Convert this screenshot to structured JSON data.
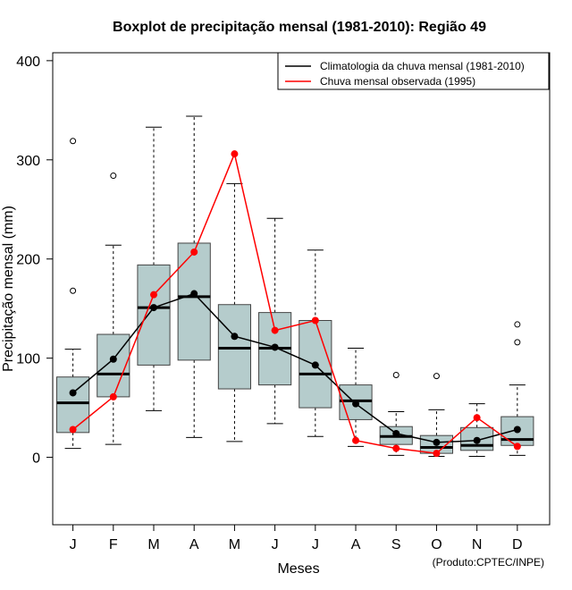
{
  "chart_data": {
    "type": "boxplot",
    "title": "Boxplot de precipitação mensal (1981-2010): Região 49",
    "xlabel": "Meses",
    "ylabel": "Precipitação mensal (mm)",
    "ylim": [
      -68,
      408
    ],
    "yticks": [
      0,
      100,
      200,
      300,
      400
    ],
    "grid": false,
    "legend_position": "top-right",
    "credit": "(Produto:CPTEC/INPE)",
    "categories": [
      "J",
      "F",
      "M",
      "A",
      "M",
      "J",
      "J",
      "A",
      "S",
      "O",
      "N",
      "D"
    ],
    "boxes": [
      {
        "month": "J",
        "whisker_low": 9,
        "q1": 25,
        "median": 55,
        "q3": 81,
        "whisker_high": 109,
        "outliers": [
          168,
          319
        ]
      },
      {
        "month": "F",
        "whisker_low": 13,
        "q1": 61,
        "median": 84,
        "q3": 124,
        "whisker_high": 214,
        "outliers": [
          284
        ]
      },
      {
        "month": "M",
        "whisker_low": 47,
        "q1": 93,
        "median": 151,
        "q3": 194,
        "whisker_high": 333,
        "outliers": []
      },
      {
        "month": "A",
        "whisker_low": 20,
        "q1": 98,
        "median": 162,
        "q3": 216,
        "whisker_high": 344,
        "outliers": []
      },
      {
        "month": "M",
        "whisker_low": 16,
        "q1": 69,
        "median": 110,
        "q3": 154,
        "whisker_high": 276,
        "outliers": []
      },
      {
        "month": "J",
        "whisker_low": 34,
        "q1": 73,
        "median": 110,
        "q3": 146,
        "whisker_high": 241,
        "outliers": []
      },
      {
        "month": "J",
        "whisker_low": 21,
        "q1": 50,
        "median": 84,
        "q3": 138,
        "whisker_high": 209,
        "outliers": []
      },
      {
        "month": "A",
        "whisker_low": 11,
        "q1": 38,
        "median": 57,
        "q3": 73,
        "whisker_high": 110,
        "outliers": []
      },
      {
        "month": "S",
        "whisker_low": 2,
        "q1": 13,
        "median": 21,
        "q3": 31,
        "whisker_high": 46,
        "outliers": [
          83
        ]
      },
      {
        "month": "O",
        "whisker_low": 1,
        "q1": 4,
        "median": 10,
        "q3": 22,
        "whisker_high": 48,
        "outliers": [
          82
        ]
      },
      {
        "month": "N",
        "whisker_low": 1,
        "q1": 7,
        "median": 12,
        "q3": 30,
        "whisker_high": 54,
        "outliers": []
      },
      {
        "month": "D",
        "whisker_low": 2,
        "q1": 12,
        "median": 18,
        "q3": 41,
        "whisker_high": 73,
        "outliers": [
          116,
          134
        ]
      }
    ],
    "series": [
      {
        "name": "Climatologia da chuva mensal (1981-2010)",
        "color": "#000000",
        "values": [
          65,
          99,
          151,
          165,
          122,
          111,
          93,
          54,
          24,
          15,
          17,
          28
        ]
      },
      {
        "name": "Chuva mensal observada (1995)",
        "color": "#ff0000",
        "values": [
          28,
          61,
          164,
          207,
          306,
          128,
          138,
          17,
          9,
          4,
          40,
          11
        ]
      }
    ],
    "box_fill": "#b5cccc"
  }
}
